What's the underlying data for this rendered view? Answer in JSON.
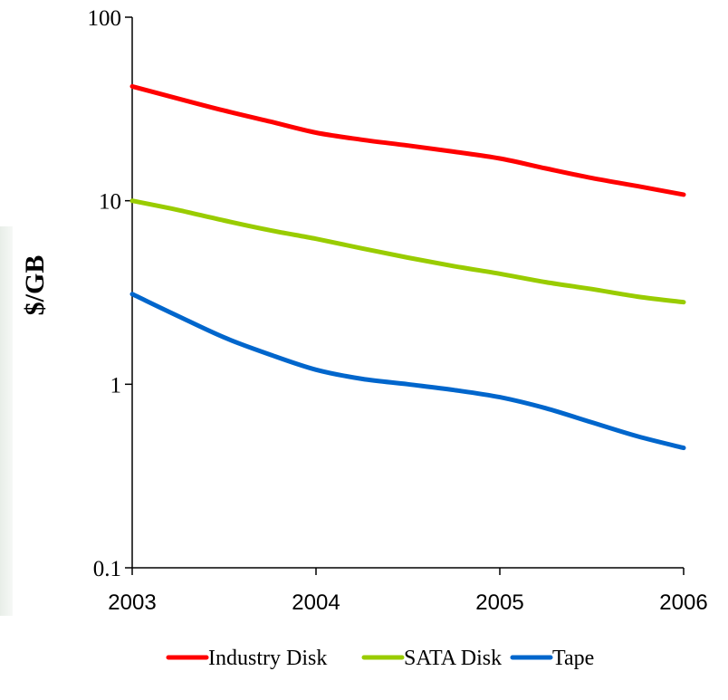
{
  "chart_data": {
    "type": "line",
    "title": "",
    "xlabel": "",
    "ylabel": "$/GB",
    "x": [
      2003,
      2003.25,
      2003.5,
      2003.75,
      2004,
      2004.25,
      2004.5,
      2004.75,
      2005,
      2005.25,
      2005.5,
      2005.75,
      2006
    ],
    "x_ticks": [
      "2003",
      "2004",
      "2005",
      "2006"
    ],
    "y_ticks": [
      "0.1",
      "1",
      "10",
      "100"
    ],
    "y_scale": "log",
    "ylim": [
      0.1,
      100
    ],
    "xlim": [
      2003,
      2006
    ],
    "grid": false,
    "legend_position": "bottom",
    "series": [
      {
        "name": "Industry Disk",
        "color": "#ff0000",
        "values": [
          42,
          36,
          31,
          27,
          23.5,
          21.5,
          20,
          18.5,
          17,
          15,
          13.3,
          12,
          10.8
        ]
      },
      {
        "name": "SATA Disk",
        "color": "#99cc00",
        "values": [
          10,
          8.9,
          7.8,
          6.9,
          6.2,
          5.5,
          4.9,
          4.4,
          4.0,
          3.6,
          3.3,
          3.0,
          2.8
        ]
      },
      {
        "name": "Tape",
        "color": "#0066cc",
        "values": [
          3.1,
          2.35,
          1.8,
          1.45,
          1.2,
          1.07,
          1.0,
          0.93,
          0.85,
          0.74,
          0.62,
          0.52,
          0.45
        ]
      }
    ]
  }
}
